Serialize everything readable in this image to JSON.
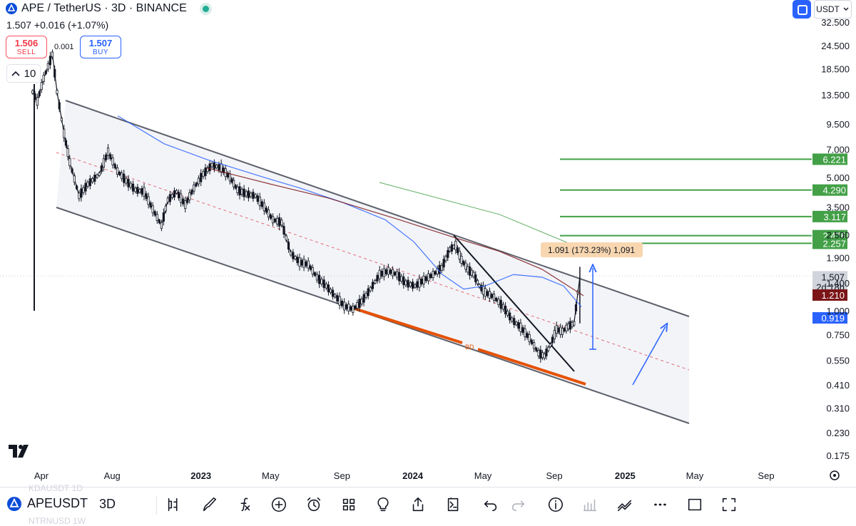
{
  "header": {
    "title": "APE / TetherUS · 3D · BINANCE",
    "price_line": "1.507 +0.016 (+1.07%)",
    "sell_price": "1.506",
    "sell_label": "SELL",
    "buy_price": "1.507",
    "buy_label": "BUY",
    "spread": "0.001",
    "interval": "10",
    "currency": "USDT"
  },
  "toolbar": {
    "symbol": "APEUSDT",
    "timeframe": "3D",
    "ghost_top": "KDAUSDT   1D",
    "ghost_bottom": "NTRNUSD   1W",
    "icons": [
      "candles-icon",
      "brush-icon",
      "fx-icon",
      "plus-circle-icon",
      "alarm-icon",
      "layout-grid-icon",
      "idea-bulb-icon",
      "share-icon",
      "replay-icon",
      "undo-icon",
      "redo-icon",
      "info-icon",
      "bars-icon",
      "trend-icon",
      "more-icon",
      "rectangle-icon",
      "fullscreen-icon"
    ]
  },
  "chart_data": {
    "type": "line",
    "scale": "log",
    "ylim": [
      0.15,
      35
    ],
    "y_ticks": [
      "32.500",
      "24.500",
      "18.500",
      "13.500",
      "9.500",
      "7.000",
      "5.000",
      "3.500",
      "2.500",
      "1.900",
      "1.400",
      "1.000",
      "0.750",
      "0.550",
      "0.410",
      "0.310",
      "0.230",
      "0.175"
    ],
    "y_tick_values": [
      32.5,
      24.5,
      18.5,
      13.5,
      9.5,
      7.0,
      5.0,
      3.5,
      2.5,
      1.9,
      1.4,
      1.0,
      0.75,
      0.55,
      0.41,
      0.31,
      0.23,
      0.175
    ],
    "x_ticks": [
      "Apr",
      "Aug",
      "2023",
      "May",
      "Sep",
      "2024",
      "May",
      "Sep",
      "2025",
      "May",
      "Sep"
    ],
    "x_tick_dates": [
      "2022-04-01",
      "2022-08-01",
      "2023-01-01",
      "2023-05-01",
      "2023-09-01",
      "2024-01-01",
      "2024-05-01",
      "2024-09-01",
      "2025-01-01",
      "2025-05-01",
      "2025-09-01"
    ],
    "x_tick_bold": [
      false,
      false,
      true,
      false,
      false,
      true,
      false,
      false,
      true,
      false,
      false
    ],
    "series": [
      {
        "name": "APEUSDT",
        "dates": [
          "2022-03-17",
          "2022-03-25",
          "2022-04-05",
          "2022-04-20",
          "2022-04-28",
          "2022-05-10",
          "2022-05-20",
          "2022-06-05",
          "2022-06-20",
          "2022-07-10",
          "2022-07-25",
          "2022-08-10",
          "2022-08-25",
          "2022-09-10",
          "2022-09-25",
          "2022-10-10",
          "2022-10-25",
          "2022-11-05",
          "2022-11-20",
          "2022-12-05",
          "2022-12-20",
          "2023-01-05",
          "2023-01-20",
          "2023-02-05",
          "2023-02-20",
          "2023-03-05",
          "2023-03-20",
          "2023-04-05",
          "2023-04-20",
          "2023-05-05",
          "2023-05-20",
          "2023-06-05",
          "2023-06-20",
          "2023-07-05",
          "2023-07-20",
          "2023-08-05",
          "2023-08-20",
          "2023-09-05",
          "2023-09-20",
          "2023-10-05",
          "2023-10-20",
          "2023-11-05",
          "2023-11-20",
          "2023-12-05",
          "2023-12-20",
          "2024-01-05",
          "2024-01-20",
          "2024-02-05",
          "2024-02-20",
          "2024-03-05",
          "2024-03-15",
          "2024-03-25",
          "2024-04-05",
          "2024-04-15",
          "2024-04-25",
          "2024-05-05",
          "2024-05-20",
          "2024-06-05",
          "2024-06-20",
          "2024-07-05",
          "2024-07-20",
          "2024-08-05",
          "2024-08-15",
          "2024-08-25",
          "2024-09-05",
          "2024-09-15",
          "2024-09-25",
          "2024-10-05",
          "2024-10-15"
        ],
        "values": [
          14.0,
          12.5,
          16.5,
          22.0,
          14.0,
          8.5,
          6.0,
          4.0,
          4.6,
          5.2,
          6.8,
          5.4,
          4.8,
          4.3,
          4.2,
          3.4,
          2.8,
          3.8,
          4.2,
          3.6,
          4.4,
          5.2,
          5.8,
          5.6,
          5.0,
          4.3,
          4.1,
          4.0,
          3.5,
          3.0,
          2.9,
          2.0,
          1.8,
          1.75,
          1.5,
          1.35,
          1.2,
          1.06,
          1.02,
          1.12,
          1.3,
          1.55,
          1.62,
          1.55,
          1.4,
          1.35,
          1.45,
          1.55,
          1.68,
          2.1,
          2.2,
          1.85,
          1.65,
          1.55,
          1.35,
          1.25,
          1.18,
          1.05,
          0.9,
          0.82,
          0.72,
          0.6,
          0.58,
          0.66,
          0.8,
          0.78,
          0.83,
          0.86,
          1.507
        ]
      },
      {
        "name": "MA blue",
        "values": [
          10.5,
          7.5,
          6.2,
          5.0,
          4.4,
          3.7,
          3.0,
          2.3,
          1.55,
          1.3,
          1.35,
          1.55,
          1.5,
          1.35,
          1.05,
          0.86,
          0.85
        ]
      },
      {
        "name": "MA dark red",
        "values": [
          5.6,
          4.6,
          3.9,
          3.0,
          2.4,
          2.05,
          1.65,
          1.2
        ]
      },
      {
        "name": "MA green",
        "values": [
          4.7,
          3.2,
          2.1
        ]
      }
    ],
    "price_levels": [
      {
        "label": "6.221",
        "value": 6.221,
        "color": "#43a047"
      },
      {
        "label": "4.290",
        "value": 4.29,
        "color": "#43a047"
      },
      {
        "label": "3.117",
        "value": 3.117,
        "color": "#43a047"
      },
      {
        "label": "2.476",
        "value": 2.476,
        "color": "#43a047"
      },
      {
        "label": "2.257",
        "value": 2.257,
        "color": "#43a047"
      }
    ],
    "price_badges": [
      {
        "label": "1.507",
        "sub": "2d 18h",
        "value": 1.507,
        "color": "#d1d4dc",
        "text_color": "#131722"
      },
      {
        "label": "1.210",
        "value": 1.21,
        "color": "#7b1517",
        "text_color": "#ffffff"
      },
      {
        "label": "0.919",
        "value": 0.919,
        "color": "#2962ff",
        "text_color": "#ffffff"
      }
    ],
    "annotations": {
      "measure_label": "1.091 (173.23%) 1,091",
      "bd_label": "BD"
    },
    "grid": false,
    "legend": "none"
  }
}
